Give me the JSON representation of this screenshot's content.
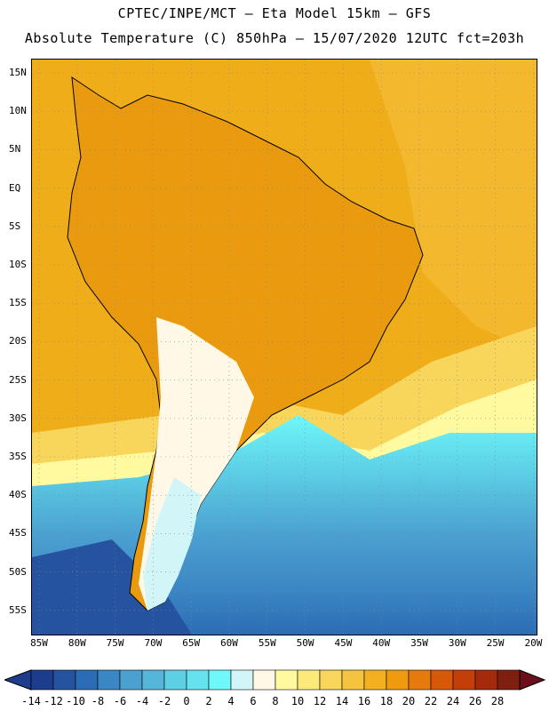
{
  "header": {
    "line1": "CPTEC/INPE/MCT –  Eta Model 15km – GFS",
    "line2": "Absolute Temperature (C) 850hPa – 15/07/2020 12UTC fct=203h"
  },
  "map": {
    "lat_labels": [
      "15N",
      "10N",
      "5N",
      "EQ",
      "5S",
      "10S",
      "15S",
      "20S",
      "25S",
      "30S",
      "35S",
      "40S",
      "45S",
      "50S",
      "55S"
    ],
    "lon_labels": [
      "85W",
      "80W",
      "75W",
      "70W",
      "65W",
      "60W",
      "55W",
      "50W",
      "45W",
      "40W",
      "35W",
      "30W",
      "25W",
      "20W"
    ],
    "ocean_color": "#f0ad1a",
    "land_color": "#ea9a0f"
  },
  "colorbar": {
    "labels": [
      "-14",
      "-12",
      "-10",
      "-8",
      "-6",
      "-4",
      "-2",
      "0",
      "2",
      "4",
      "6",
      "8",
      "10",
      "12",
      "14",
      "16",
      "18",
      "20",
      "22",
      "24",
      "26",
      "28"
    ],
    "colors": [
      "#1d3c8c",
      "#2553a0",
      "#2c6cb4",
      "#3b86c4",
      "#4ba0d0",
      "#56b6da",
      "#5dd0e6",
      "#66e2ee",
      "#6ef8fa",
      "#d2f6f8",
      "#fff8e6",
      "#fffaa0",
      "#fbe97a",
      "#f8d65c",
      "#f5c43f",
      "#f3b021",
      "#f09a10",
      "#e77a0c",
      "#d8580a",
      "#c43e09",
      "#a52a0d",
      "#7e1f12"
    ],
    "under_color": "#1d3c8c",
    "over_color": "#6c0f1c"
  }
}
